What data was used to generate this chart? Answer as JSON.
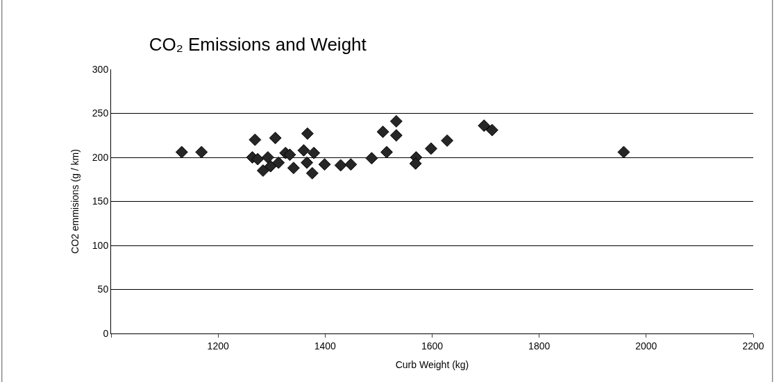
{
  "chart_data": {
    "type": "scatter",
    "title": "CO₂ Emissions and Weight",
    "xlabel": "Curb Weight (kg)",
    "ylabel": "CO2 emmisions (g / km)",
    "x": [
      1132,
      1169,
      1269,
      1264,
      1274,
      1307,
      1284,
      1293,
      1298,
      1313,
      1326,
      1334,
      1341,
      1367,
      1360,
      1379,
      1366,
      1376,
      1399,
      1429,
      1448,
      1487,
      1508,
      1515,
      1533,
      1533,
      1570,
      1569,
      1598,
      1628,
      1697,
      1712,
      1958
    ],
    "series": [
      {
        "color": "#262626",
        "values": [
          206,
          206,
          220,
          200,
          198,
          222,
          185,
          200,
          190,
          194,
          205,
          203,
          188,
          227,
          208,
          205,
          194,
          182,
          192,
          191,
          192,
          199,
          229,
          206,
          241,
          225,
          200,
          193,
          210,
          219,
          236,
          231,
          206
        ]
      }
    ],
    "xlim": [
      1000,
      2200
    ],
    "xticks": [
      {
        "value": 1000,
        "label": null
      },
      1200,
      1400,
      1600,
      1800,
      2000,
      2200
    ],
    "ylim": [
      0,
      300
    ],
    "yticks": [
      0,
      50,
      100,
      150,
      200,
      250,
      300
    ],
    "grid": "y",
    "marker": "diamond",
    "legend": false
  }
}
